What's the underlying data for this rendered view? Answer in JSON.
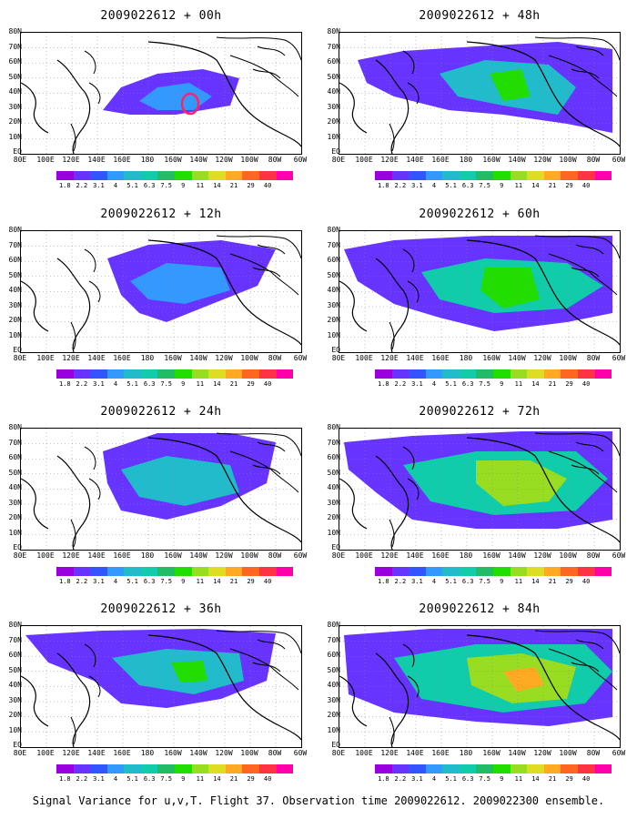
{
  "panels": [
    {
      "title": "2009022612 + 00h"
    },
    {
      "title": "2009022612 + 48h"
    },
    {
      "title": "2009022612 + 12h"
    },
    {
      "title": "2009022612 + 60h"
    },
    {
      "title": "2009022612 + 24h"
    },
    {
      "title": "2009022612 + 72h"
    },
    {
      "title": "2009022612 + 36h"
    },
    {
      "title": "2009022612 + 84h"
    }
  ],
  "lat_labels": [
    "80N",
    "70N",
    "60N",
    "50N",
    "40N",
    "30N",
    "20N",
    "10N",
    "EQ"
  ],
  "lon_labels": [
    "80E",
    "100E",
    "120E",
    "140E",
    "160E",
    "180",
    "160W",
    "140W",
    "120W",
    "100W",
    "80W",
    "60W"
  ],
  "legend": {
    "labels": [
      "1.8",
      "2.2",
      "3.1",
      "4",
      "5.1",
      "6.3",
      "7.5",
      "9",
      "11",
      "14",
      "21",
      "29",
      "40"
    ],
    "colors": [
      "#9900dd",
      "#6633ff",
      "#3355ff",
      "#3399ff",
      "#22bbcc",
      "#11ccaa",
      "#22bb66",
      "#22dd00",
      "#99dd22",
      "#dddd22",
      "#ffaa22",
      "#ff6622",
      "#ff3344",
      "#ff00aa"
    ]
  },
  "caption": "Signal Variance for u,v,T. Flight 37. Observation time 2009022612. 2009022300 ensemble."
}
